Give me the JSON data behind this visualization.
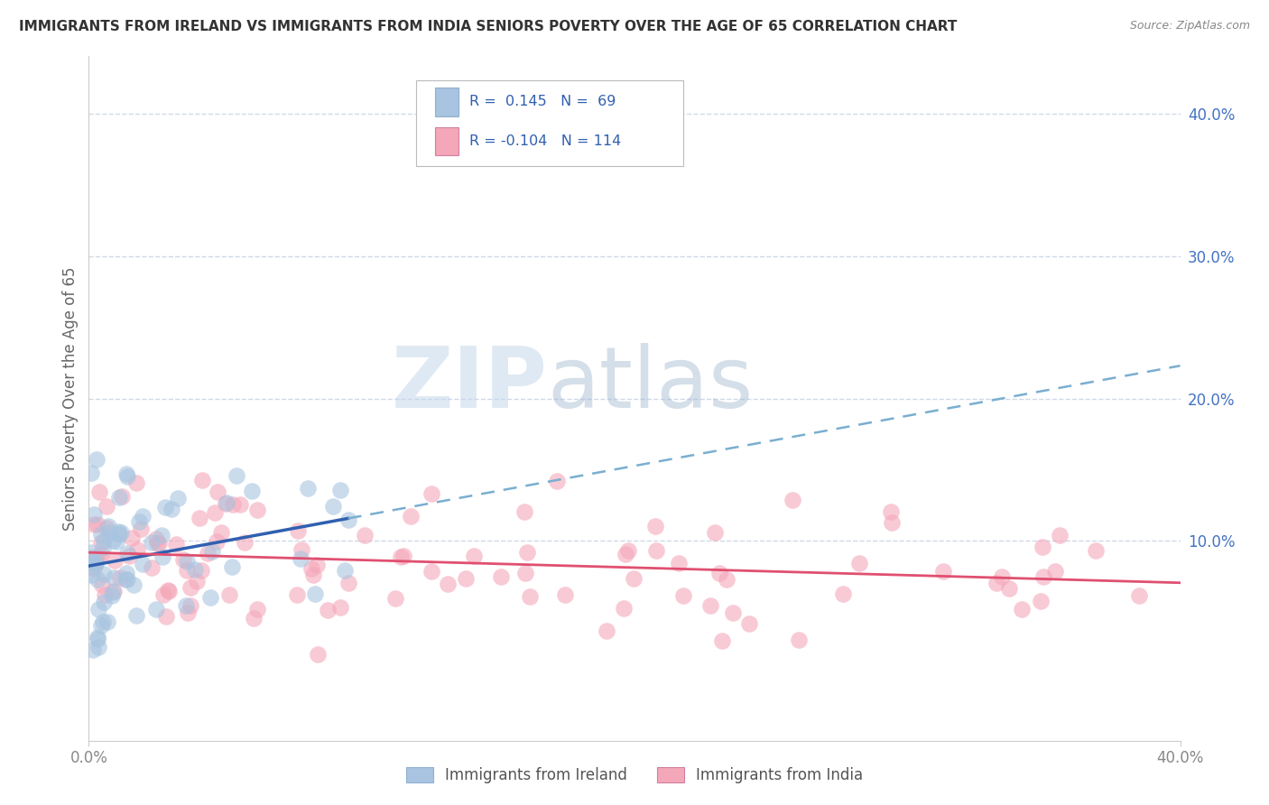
{
  "title": "IMMIGRANTS FROM IRELAND VS IMMIGRANTS FROM INDIA SENIORS POVERTY OVER THE AGE OF 65 CORRELATION CHART",
  "source": "Source: ZipAtlas.com",
  "ylabel": "Seniors Poverty Over the Age of 65",
  "xlim": [
    0.0,
    0.4
  ],
  "ylim": [
    -0.04,
    0.44
  ],
  "ytick_vals": [
    0.0,
    0.1,
    0.2,
    0.3,
    0.4
  ],
  "ytick_labels_right": [
    "",
    "10.0%",
    "20.0%",
    "30.0%",
    "40.0%"
  ],
  "ireland_R": 0.145,
  "ireland_N": 69,
  "india_R": -0.104,
  "india_N": 114,
  "ireland_color": "#a8c4e0",
  "ireland_line_color": "#3060b0",
  "ireland_dashed_color": "#7aaed0",
  "india_color": "#f4a7b9",
  "india_line_color": "#e05070",
  "legend_text_color": "#3060b0",
  "watermark_zip": "ZIP",
  "watermark_atlas": "atlas",
  "background_color": "#ffffff",
  "grid_color": "#d0d8e8",
  "title_color": "#333333",
  "source_color": "#888888",
  "axis_label_color": "#4472c4",
  "tick_color": "#888888"
}
